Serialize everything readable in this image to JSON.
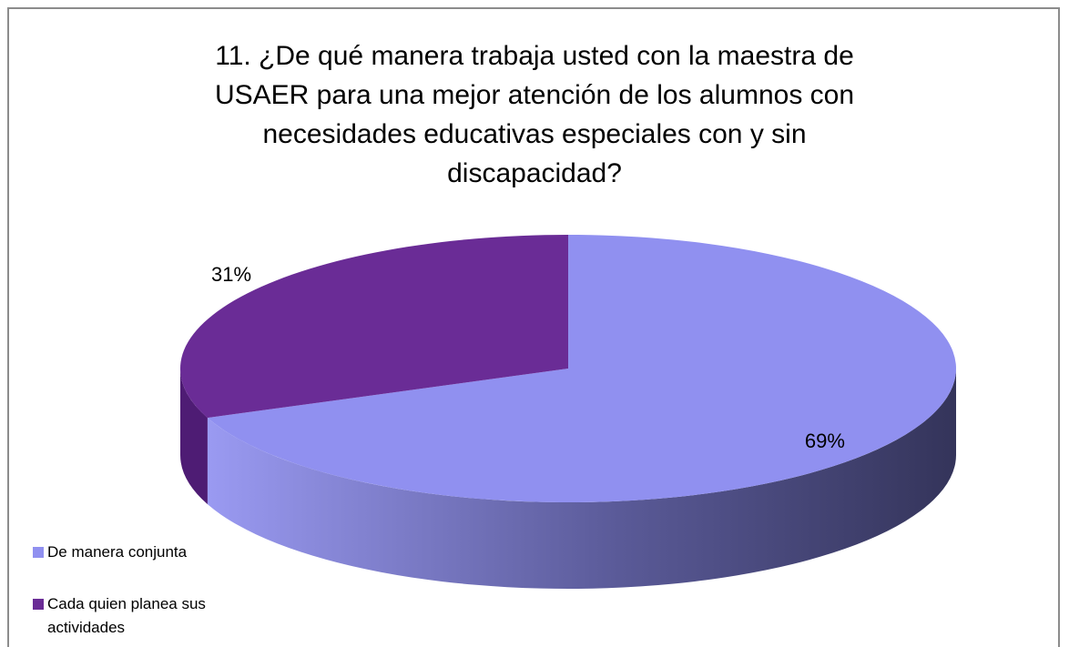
{
  "chart_data": {
    "type": "pie",
    "title": "11. ¿De qué manera trabaja usted con la maestra de USAER para una mejor atención de los alumnos con necesidades educativas especiales con y sin discapacidad?",
    "categories": [
      "De manera conjunta",
      "Cada quien planea sus actividades"
    ],
    "values": [
      69,
      31
    ],
    "value_labels": [
      "69%",
      "31%"
    ],
    "colors": [
      "#9090f0",
      "#6a2c96"
    ]
  }
}
